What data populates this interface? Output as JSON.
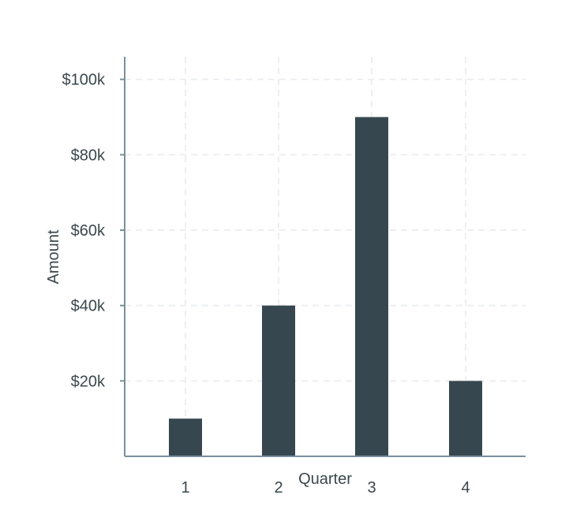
{
  "chart_data": {
    "type": "bar",
    "categories": [
      "1",
      "2",
      "3",
      "4"
    ],
    "values": [
      10000,
      40000,
      90000,
      20000
    ],
    "title": "",
    "xlabel": "Quarter",
    "ylabel": "Amount",
    "ylim": [
      0,
      106000
    ],
    "yticks": [
      20000,
      40000,
      60000,
      80000,
      100000
    ],
    "ytick_labels": [
      "$20k",
      "$40k",
      "$60k",
      "$80k",
      "$100k"
    ],
    "grid": true,
    "legend": "none",
    "colors": {
      "bar": "#37474f",
      "axis": "#78909c",
      "grid": "#eceff1",
      "text": "#3a474d"
    }
  }
}
